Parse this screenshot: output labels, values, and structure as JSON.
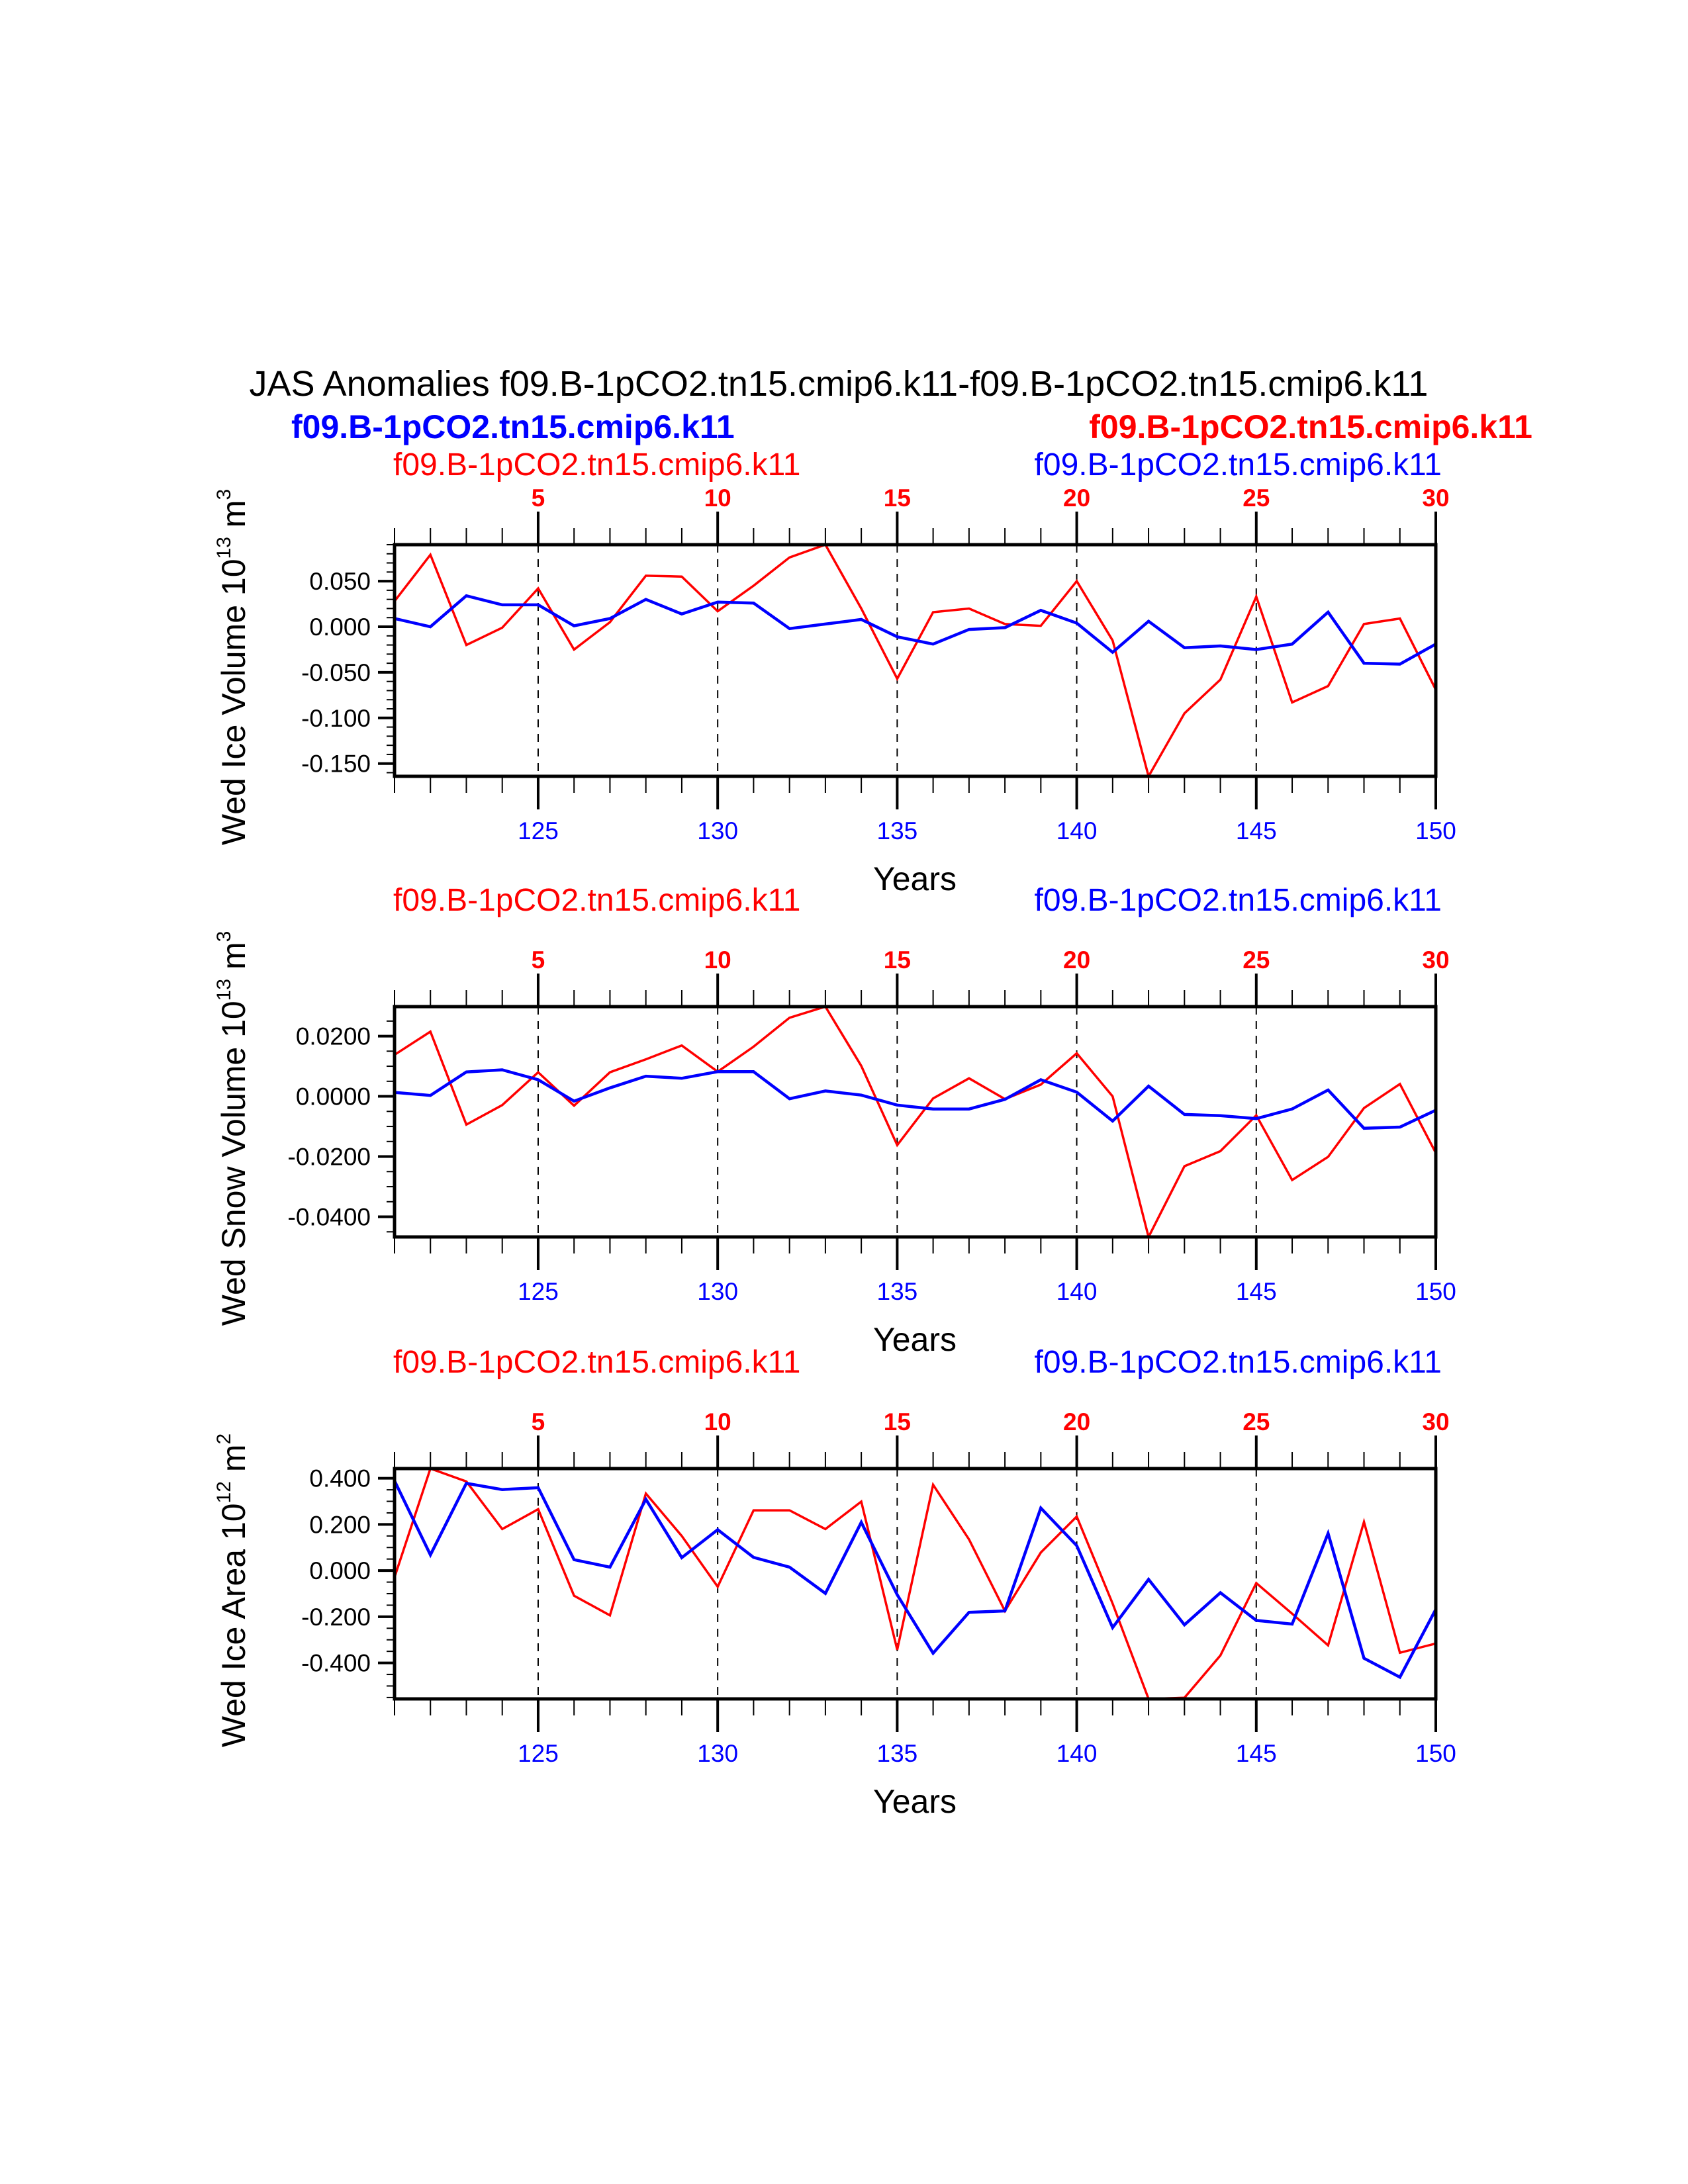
{
  "title": "JAS Anomalies f09.B-1pCO2.tn15.cmip6.k11-f09.B-1pCO2.tn15.cmip6.k11",
  "colors": {
    "red": "#ff0000",
    "blue": "#0000ff",
    "axis": "#000000"
  },
  "chart_data": [
    {
      "type": "line",
      "ylabel": {
        "text": "Wed Ice Volume 10",
        "exp1": "13",
        "unit": " m",
        "exp2": "3"
      },
      "xlabel": "Years",
      "left_string": "f09.B-1pCO2.tn15.cmip6.k11",
      "right_string": "f09.B-1pCO2.tn15.cmip6.k11",
      "left_bold_string": "f09.B-1pCO2.tn15.cmip6.k11",
      "right_bold_string": "f09.B-1pCO2.tn15.cmip6.k11",
      "xlim": [
        121,
        150
      ],
      "ylim": [
        -0.164,
        0.09
      ],
      "yticks": [
        0.05,
        0.0,
        -0.05,
        -0.1,
        -0.15
      ],
      "ytick_labels": [
        "0.050",
        "0.000",
        "-0.050",
        "-0.100",
        "-0.150"
      ],
      "yminor_step": 0.01,
      "xticks_bottom": [
        "125",
        "130",
        "135",
        "140",
        "145",
        "150"
      ],
      "xticks_top": [
        "5",
        "10",
        "15",
        "20",
        "25",
        "30"
      ],
      "series": [
        {
          "name": "f09.B-1pCO2.tn15.cmip6.k11",
          "color": "#ff0000",
          "axis": "top",
          "values": [
            0.028,
            0.079,
            -0.02,
            -0.001,
            0.042,
            -0.025,
            0.005,
            0.056,
            0.055,
            0.017,
            0.045,
            0.076,
            0.09,
            0.02,
            -0.057,
            0.016,
            0.02,
            0.003,
            0.001,
            0.05,
            -0.015,
            -0.164,
            -0.095,
            -0.058,
            0.033,
            -0.083,
            -0.065,
            0.003,
            0.009,
            -0.069
          ]
        },
        {
          "name": "f09.B-1pCO2.tn15.cmip6.k11",
          "color": "#0000ff",
          "axis": "bottom",
          "values": [
            0.009,
            0.0,
            0.034,
            0.024,
            0.024,
            0.001,
            0.009,
            0.03,
            0.014,
            0.027,
            0.026,
            -0.002,
            0.003,
            0.008,
            -0.011,
            -0.019,
            -0.003,
            -0.001,
            0.018,
            0.004,
            -0.028,
            0.006,
            -0.023,
            -0.021,
            -0.025,
            -0.019,
            0.016,
            -0.04,
            -0.041,
            -0.019
          ]
        }
      ]
    },
    {
      "type": "line",
      "ylabel": {
        "text": "Wed Snow Volume 10",
        "exp1": "13",
        "unit": " m",
        "exp2": "3"
      },
      "xlabel": "Years",
      "left_string": "f09.B-1pCO2.tn15.cmip6.k11",
      "right_string": "f09.B-1pCO2.tn15.cmip6.k11",
      "xlim": [
        121,
        150
      ],
      "ylim": [
        -0.0467,
        0.0298
      ],
      "yticks": [
        0.02,
        0.0,
        -0.02,
        -0.04
      ],
      "ytick_labels": [
        "0.0200",
        "0.0000",
        "-0.0200",
        "-0.0400"
      ],
      "yminor_step": 0.005,
      "xticks_bottom": [
        "125",
        "130",
        "135",
        "140",
        "145",
        "150"
      ],
      "xticks_top": [
        "5",
        "10",
        "15",
        "20",
        "25",
        "30"
      ],
      "series": [
        {
          "name": "f09.B-1pCO2.tn15.cmip6.k11",
          "color": "#ff0000",
          "axis": "top",
          "values": [
            0.0138,
            0.0215,
            -0.0094,
            -0.0029,
            0.008,
            -0.0031,
            0.008,
            0.0123,
            0.0169,
            0.0082,
            0.0165,
            0.0261,
            0.0298,
            0.0101,
            -0.0162,
            -0.0007,
            0.006,
            -0.0009,
            0.0039,
            0.0143,
            0.0,
            -0.0467,
            -0.0232,
            -0.0182,
            -0.0063,
            -0.0278,
            -0.0201,
            -0.0039,
            0.0041,
            -0.0188
          ]
        },
        {
          "name": "f09.B-1pCO2.tn15.cmip6.k11",
          "color": "#0000ff",
          "axis": "bottom",
          "values": [
            0.0013,
            0.0003,
            0.0081,
            0.0088,
            0.0055,
            -0.0016,
            0.0028,
            0.0067,
            0.006,
            0.0082,
            0.0082,
            -0.0008,
            0.0018,
            0.0004,
            -0.0029,
            -0.0042,
            -0.0042,
            -0.001,
            0.0055,
            0.0014,
            -0.0082,
            0.0034,
            -0.006,
            -0.0064,
            -0.0074,
            -0.0042,
            0.0021,
            -0.0106,
            -0.0102,
            -0.0046
          ]
        }
      ]
    },
    {
      "type": "line",
      "ylabel": {
        "text": "Wed Ice Area 10",
        "exp1": "12",
        "unit": " m",
        "exp2": "2"
      },
      "xlabel": "Years",
      "left_string": "f09.B-1pCO2.tn15.cmip6.k11",
      "right_string": "f09.B-1pCO2.tn15.cmip6.k11",
      "xlim": [
        121,
        150
      ],
      "ylim": [
        -0.556,
        0.442
      ],
      "yticks": [
        0.4,
        0.2,
        0.0,
        -0.2,
        -0.4
      ],
      "ytick_labels": [
        "0.400",
        "0.200",
        "0.000",
        "-0.200",
        "-0.400"
      ],
      "yminor_step": 0.05,
      "xticks_bottom": [
        "125",
        "130",
        "135",
        "140",
        "145",
        "150"
      ],
      "xticks_top": [
        "5",
        "10",
        "15",
        "20",
        "25",
        "30"
      ],
      "series": [
        {
          "name": "f09.B-1pCO2.tn15.cmip6.k11",
          "color": "#ff0000",
          "axis": "top",
          "values": [
            -0.029,
            0.442,
            0.386,
            0.18,
            0.266,
            -0.109,
            -0.194,
            0.334,
            0.15,
            -0.07,
            0.261,
            0.261,
            0.18,
            0.299,
            -0.343,
            0.372,
            0.135,
            -0.175,
            0.078,
            0.234,
            -0.143,
            -0.556,
            -0.551,
            -0.368,
            -0.054,
            -0.187,
            -0.324,
            0.211,
            -0.356,
            -0.316
          ]
        },
        {
          "name": "f09.B-1pCO2.tn15.cmip6.k11",
          "color": "#0000ff",
          "axis": "bottom",
          "values": [
            0.389,
            0.068,
            0.378,
            0.351,
            0.359,
            0.047,
            0.015,
            0.309,
            0.056,
            0.177,
            0.057,
            0.015,
            -0.099,
            0.209,
            -0.105,
            -0.358,
            -0.181,
            -0.175,
            0.271,
            0.108,
            -0.247,
            -0.038,
            -0.235,
            -0.096,
            -0.216,
            -0.232,
            0.161,
            -0.38,
            -0.462,
            -0.168
          ]
        }
      ]
    }
  ]
}
